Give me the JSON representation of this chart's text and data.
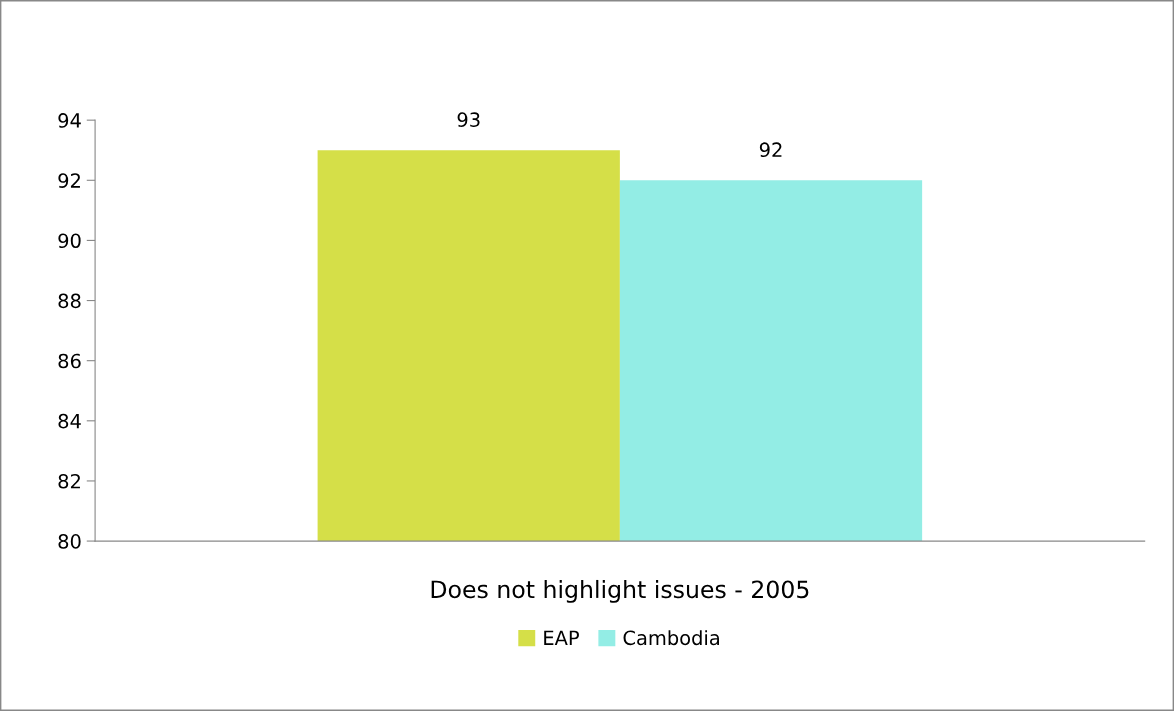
{
  "chart_data": {
    "type": "bar",
    "categories": [
      "Does not highlight issues - 2005"
    ],
    "series": [
      {
        "name": "EAP",
        "color": "#d5df48",
        "values": [
          93
        ]
      },
      {
        "name": "Cambodia",
        "color": "#93ede5",
        "values": [
          92
        ]
      }
    ],
    "ylim": [
      80,
      94
    ],
    "yticks": [
      80,
      82,
      84,
      86,
      88,
      90,
      92,
      94
    ],
    "data_labels": true,
    "grid": false,
    "legend": "bottom"
  }
}
